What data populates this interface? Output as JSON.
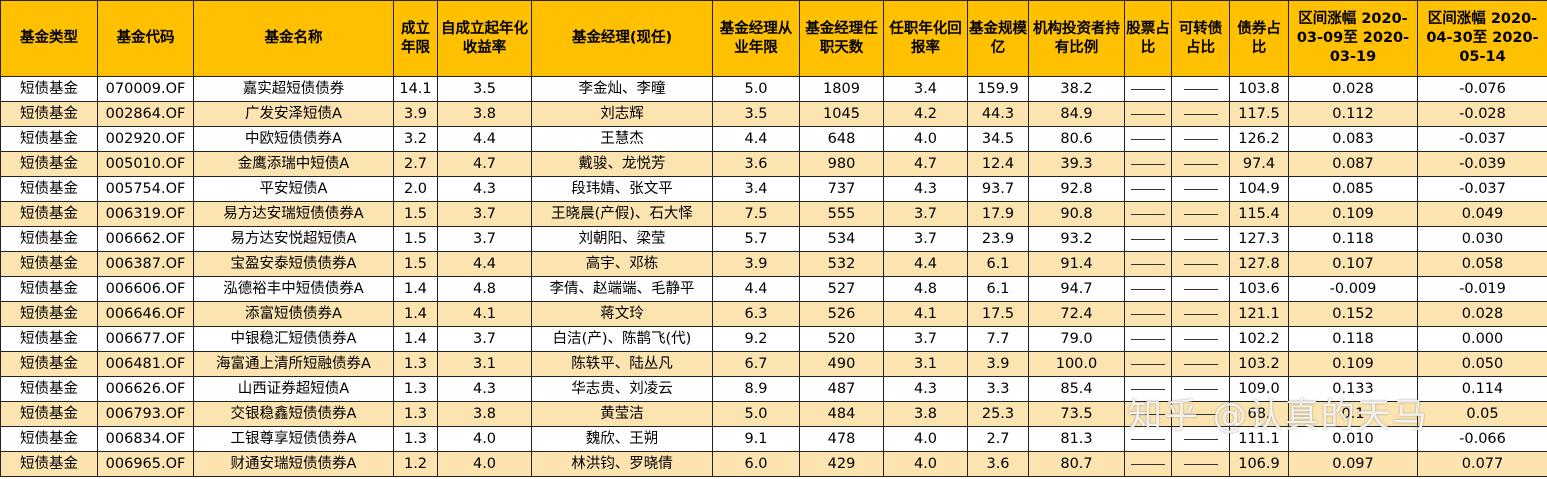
{
  "headers": [
    "基金类型",
    "基金代码",
    "基金名称",
    "成立年限",
    "自成立起年化收益率",
    "基金经理(现任)",
    "基金经理从业年限",
    "基金经理任职天数",
    "任职年化回报率",
    "基金规模亿",
    "机构投资者持有比例",
    "股票占比",
    "可转债占比",
    "债券占比",
    "区间涨幅 2020-03-09至 2020-03-19",
    "区间涨幅 2020-04-30至 2020-05-14"
  ],
  "rows": [
    [
      "短债基金",
      "070009.OF",
      "嘉实超短债债券",
      "14.1",
      "3.5",
      "李金灿、李曈",
      "5.0",
      "1809",
      "3.4",
      "159.9",
      "38.2",
      "——",
      "——",
      "103.8",
      "0.028",
      "-0.076"
    ],
    [
      "短债基金",
      "002864.OF",
      "广发安泽短债A",
      "3.9",
      "3.8",
      "刘志辉",
      "3.5",
      "1045",
      "4.2",
      "44.3",
      "84.9",
      "——",
      "——",
      "117.5",
      "0.112",
      "-0.028"
    ],
    [
      "短债基金",
      "002920.OF",
      "中欧短债债券A",
      "3.2",
      "4.4",
      "王慧杰",
      "4.4",
      "648",
      "4.0",
      "34.5",
      "80.6",
      "——",
      "——",
      "126.2",
      "0.083",
      "-0.037"
    ],
    [
      "短债基金",
      "005010.OF",
      "金鹰添瑞中短债A",
      "2.7",
      "4.7",
      "戴骏、龙悦芳",
      "3.6",
      "980",
      "4.7",
      "12.4",
      "39.3",
      "——",
      "——",
      "97.4",
      "0.087",
      "-0.039"
    ],
    [
      "短债基金",
      "005754.OF",
      "平安短债A",
      "2.0",
      "4.3",
      "段玮婧、张文平",
      "3.4",
      "737",
      "4.3",
      "93.7",
      "92.8",
      "——",
      "——",
      "104.9",
      "0.085",
      "-0.037"
    ],
    [
      "短债基金",
      "006319.OF",
      "易方达安瑞短债债券A",
      "1.5",
      "3.7",
      "王晓晨(产假)、石大怿",
      "7.5",
      "555",
      "3.7",
      "17.9",
      "90.8",
      "——",
      "——",
      "115.4",
      "0.109",
      "0.049"
    ],
    [
      "短债基金",
      "006662.OF",
      "易方达安悦超短债A",
      "1.5",
      "3.7",
      "刘朝阳、梁莹",
      "5.7",
      "534",
      "3.7",
      "23.9",
      "93.2",
      "——",
      "——",
      "127.3",
      "0.118",
      "0.030"
    ],
    [
      "短债基金",
      "006387.OF",
      "宝盈安泰短债债券A",
      "1.5",
      "4.4",
      "高宇、邓栋",
      "3.9",
      "532",
      "4.4",
      "6.1",
      "91.4",
      "——",
      "——",
      "127.8",
      "0.107",
      "0.058"
    ],
    [
      "短债基金",
      "006606.OF",
      "泓德裕丰中短债债券A",
      "1.4",
      "4.8",
      "李倩、赵端端、毛静平",
      "4.4",
      "527",
      "4.8",
      "6.1",
      "94.7",
      "——",
      "——",
      "103.6",
      "-0.009",
      "-0.019"
    ],
    [
      "短债基金",
      "006646.OF",
      "添富短债债券A",
      "1.4",
      "4.1",
      "蒋文玲",
      "6.3",
      "526",
      "4.1",
      "17.5",
      "72.4",
      "——",
      "——",
      "121.1",
      "0.152",
      "0.028"
    ],
    [
      "短债基金",
      "006677.OF",
      "中银稳汇短债债券A",
      "1.4",
      "3.7",
      "白洁(产)、陈鹊飞(代)",
      "9.2",
      "520",
      "3.7",
      "7.7",
      "79.0",
      "——",
      "——",
      "102.2",
      "0.118",
      "0.000"
    ],
    [
      "短债基金",
      "006481.OF",
      "海富通上清所短融债券A",
      "1.3",
      "3.1",
      "陈轶平、陆丛凡",
      "6.7",
      "490",
      "3.1",
      "3.9",
      "100.0",
      "——",
      "——",
      "103.2",
      "0.109",
      "0.050"
    ],
    [
      "短债基金",
      "006626.OF",
      "山西证券超短债A",
      "1.3",
      "4.3",
      "华志贵、刘凌云",
      "8.9",
      "487",
      "4.3",
      "3.3",
      "85.4",
      "——",
      "——",
      "109.0",
      "0.133",
      "0.114"
    ],
    [
      "短债基金",
      "006793.OF",
      "交银稳鑫短债债券A",
      "1.3",
      "3.8",
      "黄莹洁",
      "5.0",
      "484",
      "3.8",
      "25.3",
      "73.5",
      "——",
      "——",
      "68.",
      "0.1",
      "0.05"
    ],
    [
      "短债基金",
      "006834.OF",
      "工银尊享短债债券A",
      "1.3",
      "4.0",
      "魏欣、王朔",
      "9.1",
      "478",
      "4.0",
      "2.7",
      "81.3",
      "——",
      "——",
      "111.1",
      "0.010",
      "-0.066"
    ],
    [
      "短债基金",
      "006965.OF",
      "财通安瑞短债债券A",
      "1.2",
      "4.0",
      "林洪钧、罗晓倩",
      "6.0",
      "429",
      "4.0",
      "3.6",
      "80.7",
      "——",
      "——",
      "106.9",
      "0.097",
      "0.077"
    ]
  ],
  "watermark": "知乎 @认真的天马",
  "colors": {
    "header_bg": "#ffc000",
    "alt_row_bg": "#fce4b0",
    "plain_row_bg": "#ffffff",
    "border": "#222222"
  }
}
